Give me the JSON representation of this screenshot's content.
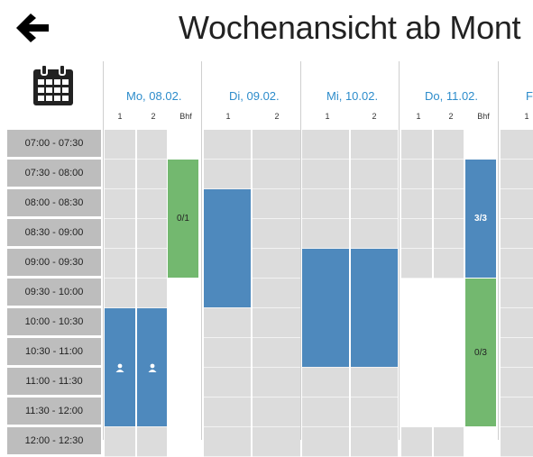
{
  "header": {
    "title": "Wochenansicht ab Mont"
  },
  "icons": {
    "back": "arrow-left-icon",
    "calendar": "calendar-icon"
  },
  "days": [
    {
      "label": "Mo, 08.02.",
      "subs": [
        "1",
        "2",
        "Bhf"
      ]
    },
    {
      "label": "Di, 09.02.",
      "subs": [
        "1",
        "2"
      ]
    },
    {
      "label": "Mi, 10.02.",
      "subs": [
        "1",
        "2"
      ]
    },
    {
      "label": "Do, 11.02.",
      "subs": [
        "1",
        "2",
        "Bhf"
      ]
    },
    {
      "label": "F",
      "subs": [
        "1"
      ]
    }
  ],
  "time_slots": [
    "07:00 - 07:30",
    "07:30 - 08:00",
    "08:00 - 08:30",
    "08:30 - 09:00",
    "09:00 - 09:30",
    "09:30 - 10:00",
    "10:00 - 10:30",
    "10:30 - 11:00",
    "11:00 - 11:30",
    "11:30 - 12:00",
    "12:00 - 12:30"
  ],
  "bookings": {
    "mo_bhf": "0/1",
    "do_bhf_1": "3/3",
    "do_bhf_2": "0/3",
    "user_icon": "user-icon"
  },
  "colors": {
    "booked": "#4e89bd",
    "free": "#73b86f",
    "link": "#2d8ccb",
    "slot": "#bdbdbd",
    "cell": "#dcdcdc"
  }
}
